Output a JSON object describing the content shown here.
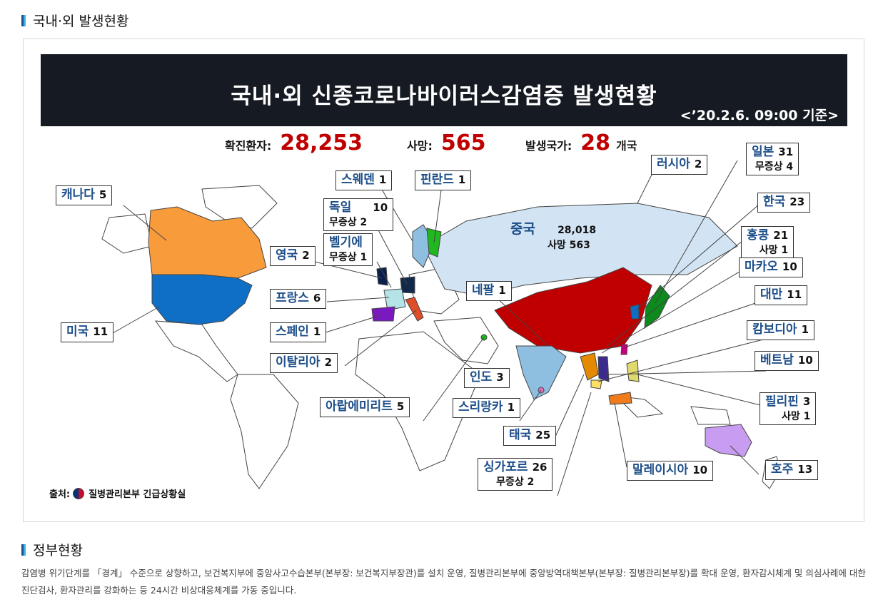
{
  "section1": {
    "title": "국내·외 발생현황"
  },
  "banner": {
    "title": "국내·외 신종코로나바이러스감염증 발생현황",
    "date": "<’20.2.6. 09:00 기준>"
  },
  "stats": {
    "confirmed_label": "확진환자:",
    "confirmed_value": "28,253",
    "deaths_label": "사망:",
    "deaths_value": "565",
    "countries_label": "발생국가:",
    "countries_value": "28",
    "countries_unit": "개국"
  },
  "china": {
    "name": "중국",
    "cases": "28,018",
    "deaths": "사망 563"
  },
  "countries": {
    "canada": {
      "name": "캐나다",
      "count": "5"
    },
    "usa": {
      "name": "미국",
      "count": "11"
    },
    "sweden": {
      "name": "스웨덴",
      "count": "1"
    },
    "finland": {
      "name": "핀란드",
      "count": "1"
    },
    "germany": {
      "name": "독일",
      "count": "10",
      "sub": "무증상  2"
    },
    "belgium": {
      "name": "벨기에",
      "sub": "무증상  1"
    },
    "uk": {
      "name": "영국",
      "count": "2"
    },
    "france": {
      "name": "프랑스",
      "count": "6"
    },
    "spain": {
      "name": "스페인",
      "count": "1"
    },
    "italy": {
      "name": "이탈리아",
      "count": "2"
    },
    "nepal": {
      "name": "네팔",
      "count": "1"
    },
    "india": {
      "name": "인도",
      "count": "3"
    },
    "uae": {
      "name": "아랍에미리트",
      "count": "5"
    },
    "srilanka": {
      "name": "스리랑카",
      "count": "1"
    },
    "thailand": {
      "name": "태국",
      "count": "25"
    },
    "singapore": {
      "name": "싱가포르",
      "count": "26",
      "sub": "무증상   2"
    },
    "malaysia": {
      "name": "말레이시아",
      "count": "10"
    },
    "australia": {
      "name": "호주",
      "count": "13"
    },
    "philippines": {
      "name": "필리핀",
      "count": "3",
      "sub": "사망  1"
    },
    "vietnam": {
      "name": "베트남",
      "count": "10"
    },
    "cambodia": {
      "name": "캄보디아",
      "count": "1"
    },
    "taiwan": {
      "name": "대만",
      "count": "11"
    },
    "macau": {
      "name": "마카오",
      "count": "10"
    },
    "hongkong": {
      "name": "홍콩",
      "count": "21",
      "sub": "사망     1"
    },
    "korea": {
      "name": "한국",
      "count": "23"
    },
    "japan": {
      "name": "일본",
      "count": "31",
      "sub": "무증상   4"
    },
    "russia": {
      "name": "러시아",
      "count": "2"
    }
  },
  "source": {
    "label": "출처:",
    "org": "질병관리본부 긴급상황실"
  },
  "section2": {
    "title": "정부현황",
    "desc": "감염병 위기단계를 「경계」 수준으로 상향하고, 보건복지부에 중앙사고수습본부(본부장: 보건복지부장관)를 설치 운영, 질병관리본부에 중앙방역대책본부(본부장: 질병관리본부장)를 확대 운영, 환자감시체계 및 의심사례에 대한 진단검사, 환자관리를 강화하는 등 24시간 비상대응체계를 가동 중입니다."
  },
  "colors": {
    "china": "#c00000",
    "canada": "#f79b3b",
    "usa": "#0f6fc6",
    "russia": "#d2e4f3",
    "india": "#8fbfe0",
    "japan": "#0c8a1c",
    "australia": "#c89cf0"
  }
}
